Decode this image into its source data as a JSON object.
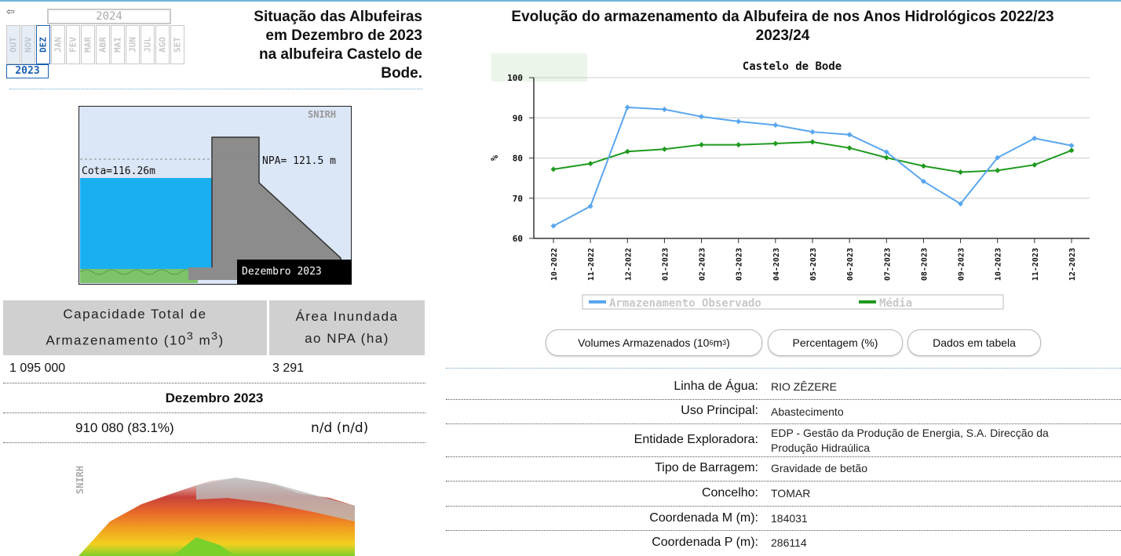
{
  "selector": {
    "year_top": "2024",
    "year_bottom": "2023",
    "months_prev": [
      "OUT",
      "NOV",
      "DEZ"
    ],
    "months_next": [
      "JAN",
      "FEV",
      "MAR",
      "ABR",
      "MAI",
      "JUN",
      "JUL",
      "AGO",
      "SET"
    ]
  },
  "left_title": [
    "Situação das Albufeiras",
    "em Dezembro de 2023",
    "na albufeira Castelo de",
    "Bode."
  ],
  "dam": {
    "brand": "SNIRH",
    "cota": "Cota=116.26m",
    "npa": "NPA= 121.5 m",
    "month": "Dezembro 2023"
  },
  "capacity_table": {
    "head1": "Capacidade Total de",
    "head1b": "Armazenamento (10",
    "head1sup": "3",
    "head1c": " m",
    "head1sup2": "3",
    "head1d": ")",
    "head2": "Área Inundada",
    "head2b": "ao NPA (ha)",
    "cap": "1 095 000",
    "area": "3 291",
    "month": "Dezembro 2023",
    "stored": "910 080 (83.1%)",
    "flooded": "n/d (n/d)"
  },
  "terrain_brand": "SNIRH",
  "right_title1": "Evolução do armazenamento da Albufeira de nos Anos Hidrológicos 2022/23",
  "right_title2": "2023/24",
  "chart_data": {
    "type": "line",
    "title": "Castelo de Bode",
    "ylabel": "%",
    "ylim": [
      60,
      100
    ],
    "yticks": [
      60,
      70,
      80,
      90,
      100
    ],
    "categories": [
      "10-2022",
      "11-2022",
      "12-2022",
      "01-2023",
      "02-2023",
      "03-2023",
      "04-2023",
      "05-2023",
      "06-2023",
      "07-2023",
      "08-2023",
      "09-2023",
      "10-2023",
      "11-2023",
      "12-2023"
    ],
    "series": [
      {
        "name": "Armazenamento Observado",
        "color": "#5aa6ee",
        "values": [
          63.1,
          68.0,
          92.6,
          92.1,
          90.3,
          89.1,
          88.2,
          86.5,
          85.8,
          81.5,
          74.2,
          68.6,
          80.1,
          84.9,
          83.1
        ]
      },
      {
        "name": "Média",
        "color": "#1f9a1f",
        "values": [
          77.2,
          78.6,
          81.6,
          82.2,
          83.3,
          83.3,
          83.6,
          84.0,
          82.5,
          80.1,
          78.0,
          76.5,
          76.9,
          78.3,
          81.9
        ]
      }
    ],
    "grid": true,
    "legend": "bottom"
  },
  "buttons": {
    "volumes": "Volumes Armazenados (10",
    "volumes_sup": "6",
    "volumes_end": " m",
    "volumes_sup2": "3",
    "volumes_close": ")",
    "percent": "Percentagem (%)",
    "table": "Dados em tabela"
  },
  "info": [
    {
      "label": "Linha de Água:",
      "value": "RIO ZÊZERE"
    },
    {
      "label": "Uso Principal:",
      "value": "Abastecimento"
    },
    {
      "label": "Entidade Exploradora:",
      "value": "EDP - Gestão da Produção de Energia, S.A. Direcção da",
      "value2": "Produção Hidraúlica"
    },
    {
      "label": "Tipo de Barragem:",
      "value": "Gravidade de betão"
    },
    {
      "label": "Concelho:",
      "value": "TOMAR"
    },
    {
      "label": "Coordenada M (m):",
      "value": "184031"
    },
    {
      "label": "Coordenada P (m):",
      "value": "286114"
    }
  ]
}
